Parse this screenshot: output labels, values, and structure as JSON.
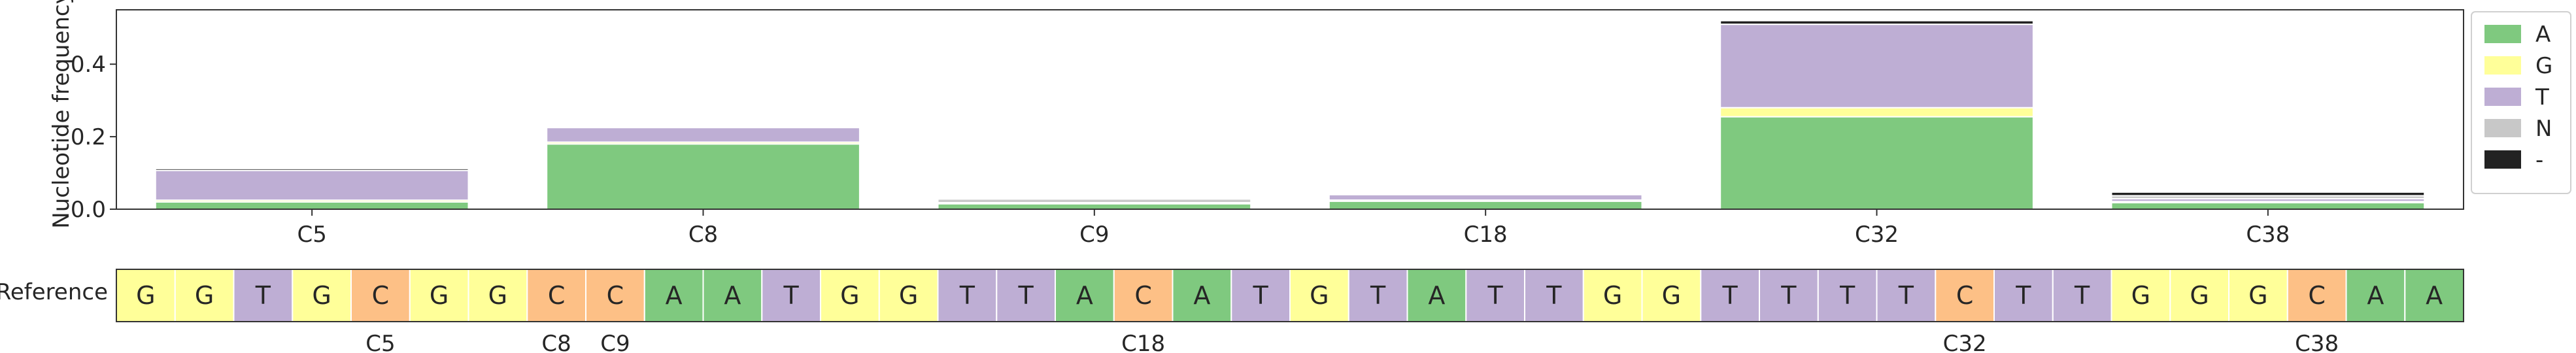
{
  "chart_data": {
    "type": "bar",
    "stacked": true,
    "categories": [
      "C5",
      "C8",
      "C9",
      "C18",
      "C32",
      "C38"
    ],
    "ylabel": "Nucleotide frequency",
    "yticks": [
      0.0,
      0.2,
      0.4
    ],
    "ylim": [
      0,
      0.55
    ],
    "grid": false,
    "legend_position": "right",
    "series": [
      {
        "name": "A",
        "color": "#7fc97f",
        "values": [
          0.02,
          0.18,
          0.015,
          0.022,
          0.255,
          0.018
        ]
      },
      {
        "name": "G",
        "color": "#ffff99",
        "values": [
          0.005,
          0.005,
          0.003,
          0.003,
          0.025,
          0.003
        ]
      },
      {
        "name": "T",
        "color": "#beaed4",
        "values": [
          0.082,
          0.04,
          0.0,
          0.015,
          0.23,
          0.008
        ]
      },
      {
        "name": "N",
        "color": "#c8c8c8",
        "values": [
          0.0,
          0.0,
          0.01,
          0.0,
          0.0,
          0.008
        ]
      },
      {
        "name": "-",
        "color": "#222222",
        "values": [
          0.005,
          0.0,
          0.0,
          0.0,
          0.01,
          0.01
        ]
      }
    ],
    "reference": {
      "label": "Reference",
      "sequence": [
        "G",
        "G",
        "T",
        "G",
        "C",
        "G",
        "G",
        "C",
        "C",
        "A",
        "A",
        "T",
        "G",
        "G",
        "T",
        "T",
        "A",
        "C",
        "A",
        "T",
        "G",
        "T",
        "A",
        "T",
        "T",
        "G",
        "G",
        "T",
        "T",
        "T",
        "T",
        "C",
        "T",
        "T",
        "G",
        "G",
        "G",
        "C",
        "A",
        "A"
      ],
      "highlight_labels": [
        {
          "index": 4,
          "label": "C5"
        },
        {
          "index": 7,
          "label": "C8"
        },
        {
          "index": 8,
          "label": "C9"
        },
        {
          "index": 17,
          "label": "C18"
        },
        {
          "index": 31,
          "label": "C32"
        },
        {
          "index": 37,
          "label": "C38"
        }
      ],
      "base_colors": {
        "A": "#7fc97f",
        "G": "#ffff99",
        "T": "#beaed4",
        "C": "#fdc086"
      }
    }
  }
}
